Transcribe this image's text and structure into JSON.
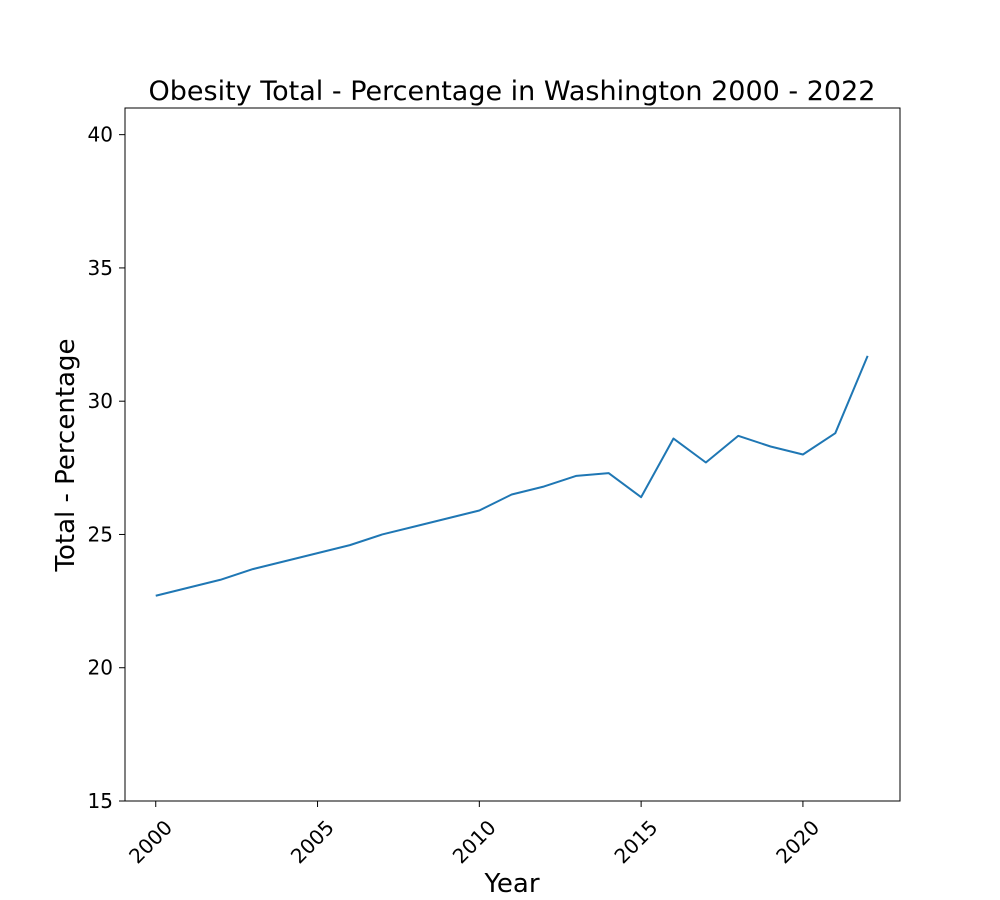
{
  "chart_data": {
    "type": "line",
    "title": "Obesity Total - Percentage in Washington 2000 - 2022",
    "xlabel": "Year",
    "ylabel": "Total - Percentage",
    "xlim": [
      1999.05,
      2023.0
    ],
    "ylim": [
      15,
      41
    ],
    "x_ticks": [
      2000,
      2005,
      2010,
      2015,
      2020
    ],
    "y_ticks": [
      15,
      20,
      25,
      30,
      35,
      40
    ],
    "grid": false,
    "legend": "none",
    "series": [
      {
        "color": "#1f77b4",
        "x": [
          2000,
          2001,
          2002,
          2003,
          2004,
          2005,
          2006,
          2007,
          2008,
          2009,
          2010,
          2011,
          2012,
          2013,
          2014,
          2015,
          2016,
          2017,
          2018,
          2019,
          2020,
          2021,
          2022
        ],
        "y": [
          22.7,
          23.0,
          23.3,
          23.7,
          24.0,
          24.3,
          24.6,
          25.0,
          25.3,
          25.6,
          25.9,
          26.5,
          26.8,
          27.2,
          27.3,
          26.4,
          28.6,
          27.7,
          28.7,
          28.3,
          28.0,
          28.8,
          31.7
        ]
      }
    ]
  }
}
